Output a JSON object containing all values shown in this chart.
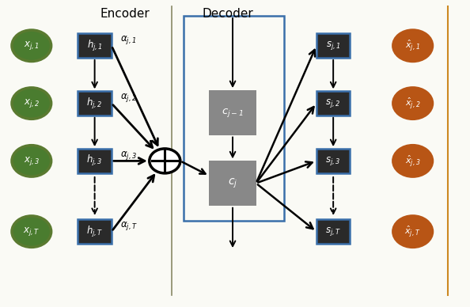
{
  "bg_color": "#fafaf5",
  "encoder_label": "Encoder",
  "decoder_label": "Decoder",
  "green_color": "#4a7c2f",
  "dark_square_color": "#2a2a2a",
  "gray_square_color": "#888888",
  "orange_color": "#b85515",
  "blue_border_color": "#3a6faa",
  "green_border_color": "#5a7a30",
  "orange_border_color": "#cc8822",
  "text_color": "white",
  "rows": [
    "1",
    "2",
    "3",
    "T"
  ],
  "fig_width": 5.94,
  "fig_height": 3.88
}
